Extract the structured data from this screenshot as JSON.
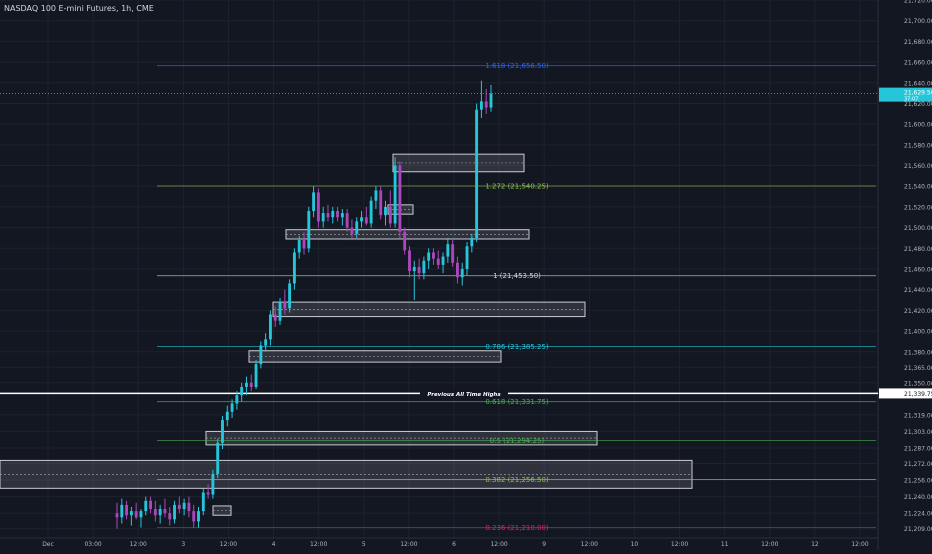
{
  "title": "NASDAQ 100 E-mini Futures, 1h, CME",
  "chart_data": {
    "type": "candlestick",
    "symbol": "NASDAQ 100 E-mini Futures",
    "interval": "1h",
    "exchange": "CME",
    "y_range": [
      21200,
      21720
    ],
    "y_ticks": [
      "21,720.00",
      "21,700.00",
      "21,680.00",
      "21,660.00",
      "21,640.00",
      "21,620.00",
      "21,600.00",
      "21,580.00",
      "21,560.00",
      "21,540.00",
      "21,520.00",
      "21,500.00",
      "21,480.00",
      "21,460.00",
      "21,440.00",
      "21,420.00",
      "21,400.00",
      "21,380.00",
      "21,365.00",
      "21,350.00",
      "21,319.00",
      "21,303.00",
      "21,287.00",
      "21,272.00",
      "21,256.00",
      "21,240.00",
      "21,224.00",
      "21,209.00"
    ],
    "x_ticks": [
      "Dec",
      "03:00",
      "12:00",
      "3",
      "12:00",
      "4",
      "12:00",
      "5",
      "12:00",
      "6",
      "12:00",
      "9",
      "12:00",
      "10",
      "12:00",
      "11",
      "12:00",
      "12",
      "12:00"
    ],
    "last_price_label": "21,629.50",
    "last_price_countdown": "37:07",
    "ath_price_label": "21,339.75",
    "ath_label": "Previous All Time Highs",
    "fib_levels": [
      {
        "label": "1.618 (21,656.50)",
        "value": 21656.5,
        "color": "#2962ff"
      },
      {
        "label": "1.272 (21,540.25)",
        "value": 21540.25,
        "color": "#8bc34a"
      },
      {
        "label": "1 (21,453.50)",
        "value": 21453.5,
        "color": "#d1d4dc"
      },
      {
        "label": "0.786 (21,385.25)",
        "value": 21385.25,
        "color": "#26c6da"
      },
      {
        "label": "0.618 (21,331.75)",
        "value": 21331.75,
        "color": "#4caf50"
      },
      {
        "label": "0.5 (21,294.25)",
        "value": 21294.25,
        "color": "#4caf50"
      },
      {
        "label": "0.382 (21,256.50)",
        "value": 21256.5,
        "color": "#8bc34a"
      },
      {
        "label": "0.236 (21,210.00)",
        "value": 21210,
        "color": "#e91e63"
      }
    ],
    "zones": [
      {
        "x0": 157,
        "x1": 163,
        "low": 21554,
        "high": 21571
      },
      {
        "x0": 148,
        "x1": 158,
        "low": 21513,
        "high": 21522
      },
      {
        "x0": 134,
        "x1": 161,
        "low": 21489,
        "high": 21498
      },
      {
        "x0": 128,
        "x1": 171,
        "low": 21414,
        "high": 21428
      },
      {
        "x0": 116,
        "x1": 159,
        "low": 21370,
        "high": 21381
      },
      {
        "x0": 97,
        "x1": 169,
        "low": 21290,
        "high": 21303
      },
      {
        "x0": 0,
        "x1": 193,
        "low": 21248,
        "high": 21275
      },
      {
        "x0": 100,
        "x1": 102,
        "low": 21222,
        "high": 21231
      }
    ],
    "candles": [
      [
        21224,
        21234,
        21209,
        21220
      ],
      [
        21220,
        21238,
        21214,
        21232
      ],
      [
        21232,
        21236,
        21218,
        21222
      ],
      [
        21222,
        21230,
        21212,
        21226
      ],
      [
        21226,
        21234,
        21218,
        21220
      ],
      [
        21220,
        21228,
        21210,
        21226
      ],
      [
        21226,
        21240,
        21222,
        21236
      ],
      [
        21236,
        21240,
        21224,
        21228
      ],
      [
        21228,
        21236,
        21216,
        21222
      ],
      [
        21222,
        21232,
        21214,
        21228
      ],
      [
        21228,
        21238,
        21220,
        21224
      ],
      [
        21224,
        21230,
        21212,
        21218
      ],
      [
        21218,
        21236,
        21214,
        21232
      ],
      [
        21232,
        21240,
        21224,
        21228
      ],
      [
        21228,
        21238,
        21222,
        21234
      ],
      [
        21234,
        21240,
        21220,
        21226
      ],
      [
        21226,
        21232,
        21210,
        21216
      ],
      [
        21216,
        21230,
        21210,
        21226
      ],
      [
        21226,
        21248,
        21222,
        21244
      ],
      [
        21244,
        21252,
        21238,
        21242
      ],
      [
        21242,
        21266,
        21238,
        21262
      ],
      [
        21262,
        21296,
        21258,
        21292
      ],
      [
        21292,
        21318,
        21286,
        21314
      ],
      [
        21314,
        21328,
        21308,
        21322
      ],
      [
        21322,
        21334,
        21316,
        21330
      ],
      [
        21330,
        21342,
        21324,
        21338
      ],
      [
        21338,
        21350,
        21332,
        21346
      ],
      [
        21346,
        21356,
        21338,
        21350
      ],
      [
        21350,
        21358,
        21342,
        21346
      ],
      [
        21346,
        21372,
        21344,
        21368
      ],
      [
        21368,
        21390,
        21364,
        21386
      ],
      [
        21386,
        21398,
        21380,
        21392
      ],
      [
        21392,
        21420,
        21386,
        21416
      ],
      [
        21416,
        21424,
        21404,
        21410
      ],
      [
        21410,
        21432,
        21406,
        21428
      ],
      [
        21428,
        21440,
        21416,
        21422
      ],
      [
        21422,
        21450,
        21418,
        21446
      ],
      [
        21446,
        21480,
        21440,
        21476
      ],
      [
        21476,
        21492,
        21470,
        21488
      ],
      [
        21488,
        21496,
        21474,
        21480
      ],
      [
        21480,
        21520,
        21476,
        21516
      ],
      [
        21516,
        21540,
        21510,
        21534
      ],
      [
        21534,
        21538,
        21500,
        21506
      ],
      [
        21506,
        21520,
        21500,
        21514
      ],
      [
        21514,
        21522,
        21506,
        21510
      ],
      [
        21510,
        21520,
        21504,
        21516
      ],
      [
        21516,
        21520,
        21506,
        21510
      ],
      [
        21510,
        21518,
        21502,
        21514
      ],
      [
        21514,
        21518,
        21496,
        21500
      ],
      [
        21500,
        21508,
        21488,
        21494
      ],
      [
        21494,
        21510,
        21490,
        21506
      ],
      [
        21506,
        21516,
        21500,
        21510
      ],
      [
        21510,
        21520,
        21502,
        21504
      ],
      [
        21504,
        21530,
        21500,
        21526
      ],
      [
        21526,
        21540,
        21518,
        21536
      ],
      [
        21536,
        21540,
        21508,
        21512
      ],
      [
        21512,
        21526,
        21502,
        21520
      ],
      [
        21520,
        21536,
        21500,
        21504
      ],
      [
        21504,
        21568,
        21500,
        21560
      ],
      [
        21560,
        21564,
        21490,
        21496
      ],
      [
        21496,
        21500,
        21474,
        21478
      ],
      [
        21478,
        21482,
        21452,
        21458
      ],
      [
        21458,
        21468,
        21430,
        21462
      ],
      [
        21462,
        21470,
        21450,
        21456
      ],
      [
        21456,
        21472,
        21450,
        21468
      ],
      [
        21468,
        21480,
        21460,
        21476
      ],
      [
        21476,
        21480,
        21464,
        21470
      ],
      [
        21470,
        21478,
        21460,
        21464
      ],
      [
        21464,
        21476,
        21456,
        21472
      ],
      [
        21472,
        21490,
        21466,
        21484
      ],
      [
        21484,
        21488,
        21462,
        21466
      ],
      [
        21466,
        21472,
        21446,
        21452
      ],
      [
        21452,
        21466,
        21444,
        21460
      ],
      [
        21460,
        21486,
        21454,
        21482
      ],
      [
        21482,
        21494,
        21476,
        21490
      ],
      [
        21490,
        21620,
        21486,
        21614
      ],
      [
        21614,
        21642,
        21606,
        21622
      ],
      [
        21622,
        21634,
        21610,
        21616
      ],
      [
        21616,
        21638,
        21612,
        21629.5
      ]
    ],
    "candle_start_index": 10,
    "total_bars": 220,
    "colors": {
      "up": "#26c6da",
      "down": "#ab47bc",
      "background": "#131722",
      "grid": "#1e222d",
      "ath": "#ffffff",
      "axis_text": "#b2b5be"
    }
  }
}
